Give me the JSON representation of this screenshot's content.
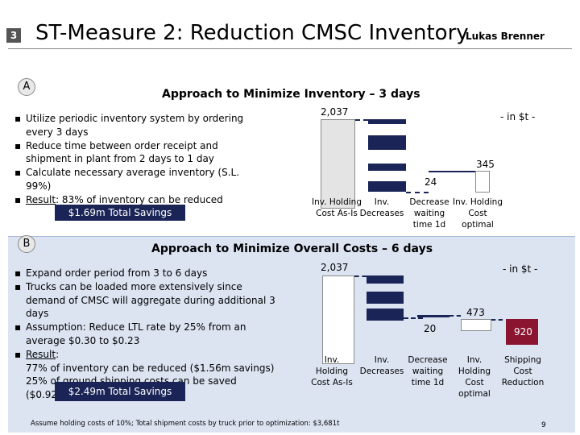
{
  "header": {
    "badge": "3",
    "title": "ST-Measure 2: Reduction CMSC Inventory",
    "author": "Lukas Brenner"
  },
  "section_a": {
    "marker": "A",
    "title": "Approach to Minimize Inventory – 3 days",
    "bullets": [
      "Utilize periodic inventory system by ordering every 3 days",
      "Reduce time between order receipt and shipment in plant from 2 days to 1 day",
      "Calculate necessary average inventory (S.L. 99%)"
    ],
    "result_label": "Result",
    "result_text": ": 83% of inventory can be reduced",
    "savings": "$1.69m Total Savings",
    "chart_unit": "- in $t -"
  },
  "section_b": {
    "marker": "B",
    "title": "Approach to Minimize Overall Costs – 6 days",
    "bullets": [
      "Expand order period from 3 to 6 days",
      "Trucks can be loaded more extensively since demand of CMSC will aggregate during additional 3 days",
      "Assumption: Reduce LTL rate by 25% from an average $0.30 to $0.23"
    ],
    "result_label": "Result",
    "result_line1": "77% of inventory can be reduced ($1.56m savings)",
    "result_line2": "25% of ground shipping costs can be saved ($0.92m)",
    "savings": "$2.49m Total Savings",
    "chart_unit": "- in $t -"
  },
  "chart_data": [
    {
      "type": "bar",
      "subtype": "waterfall",
      "title": "Approach to Minimize Inventory – 3 days",
      "unit": "- in $t -",
      "categories": [
        "Inv. Holding Cost As-Is",
        "Inv. Decreases",
        "Decrease waiting time 1d",
        "Inv. Holding Cost optimal"
      ],
      "values": [
        2037,
        null,
        24,
        345
      ],
      "value_labels": [
        "2,037",
        "",
        "24",
        "345"
      ]
    },
    {
      "type": "bar",
      "subtype": "waterfall",
      "title": "Approach to Minimize Overall Costs – 6 days",
      "unit": "- in $t -",
      "categories": [
        "Inv. Holding Cost As-Is",
        "Inv. Decreases",
        "Decrease waiting time 1d",
        "Inv. Holding Cost optimal",
        "Shipping Cost Reduction"
      ],
      "values": [
        2037,
        null,
        20,
        473,
        920
      ],
      "value_labels": [
        "2,037",
        "",
        "20",
        "473",
        "920"
      ]
    }
  ],
  "chart_a_labels": {
    "c1a": "Inv. Holding",
    "c1b": "Cost As-Is",
    "c2a": "Inv.",
    "c2b": "Decreases",
    "c3a": "Decrease",
    "c3b": "waiting",
    "c3c": "time 1d",
    "c4a": "Inv. Holding",
    "c4b": "Cost",
    "c4c": "optimal"
  },
  "chart_b_labels": {
    "c1a": "Inv.",
    "c1b": "Holding",
    "c1c": "Cost As-Is",
    "c2a": "Inv.",
    "c2b": "Decreases",
    "c3a": "Decrease",
    "c3b": "waiting",
    "c3c": "time 1d",
    "c4a": "Inv.",
    "c4b": "Holding",
    "c4c": "Cost",
    "c4d": "optimal",
    "c5a": "Shipping",
    "c5b": "Cost",
    "c5c": "Reduction"
  },
  "footer": {
    "note": "Assume holding costs of 10%; Total shipment costs by truck prior to optimization: $3,681t",
    "page": "9"
  }
}
